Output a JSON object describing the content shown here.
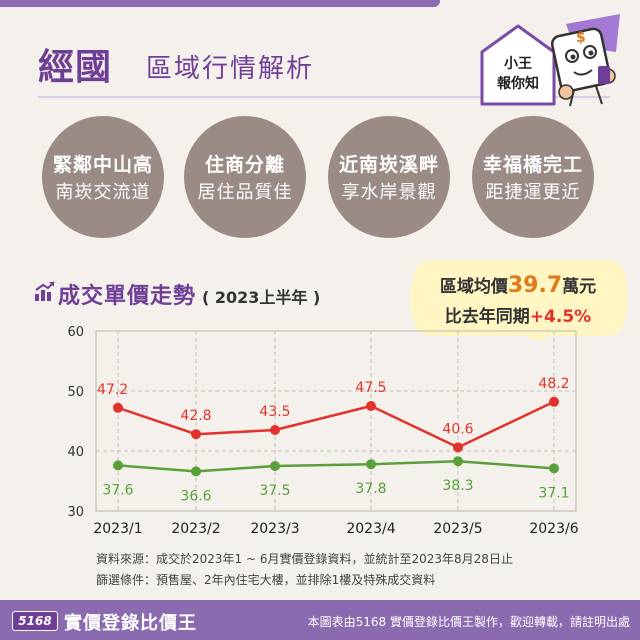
{
  "header": {
    "title": "經國",
    "subtitle": "區域行情解析",
    "mascot_caption_1": "小王",
    "mascot_caption_2": "報你知"
  },
  "highlights": [
    {
      "line1": "緊鄰中山高",
      "line2": "南崁交流道"
    },
    {
      "line1": "住商分離",
      "line2": "居住品質佳"
    },
    {
      "line1": "近南崁溪畔",
      "line2": "享水岸景觀"
    },
    {
      "line1": "幸福橋完工",
      "line2": "距捷運更近"
    }
  ],
  "trend": {
    "title": "成交單價走勢",
    "period": "( 2023上半年 )"
  },
  "callout": {
    "avg_label": "區域均價",
    "avg_value": "39.7",
    "avg_unit": "萬元",
    "yoy_label": "比去年同期",
    "yoy_value": "+4.5%"
  },
  "colors": {
    "brand_purple": "#6f3f97",
    "bar_purple": "#8b6bb0",
    "circle_gray": "#9a8c84",
    "line_red": "#e3322b",
    "line_green": "#5aa03a",
    "accent_orange": "#e07b1a",
    "callout_yellow": "#fff6c4"
  },
  "chart_data": {
    "type": "line",
    "categories": [
      "2023/1",
      "2023/2",
      "2023/3",
      "2023/4",
      "2023/5",
      "2023/6"
    ],
    "series": [
      {
        "values": [
          47.2,
          42.8,
          43.5,
          47.5,
          40.6,
          48.2
        ],
        "labels": [
          "47.2",
          "42.8",
          "43.5",
          "47.5",
          "40.6",
          "48.2"
        ]
      },
      {
        "values": [
          37.6,
          36.6,
          37.5,
          37.8,
          38.3,
          37.1
        ],
        "labels": [
          "37.6",
          "36.6",
          "37.5",
          "37.8",
          "38.3",
          "37.1"
        ]
      }
    ],
    "ylim": [
      30,
      60
    ],
    "yticks": [
      "30",
      "40",
      "50",
      "60"
    ],
    "grid": true
  },
  "footnotes": {
    "source": "資料來源：成交於2023年1 ~ 6月實價登錄資料，並統計至2023年8月28日止",
    "filter": "篩選條件：預售屋、2年內住宅大樓，並排除1樓及特殊成交資料"
  },
  "footer": {
    "logo": "5168",
    "brand": "實價登錄比價王",
    "credit": "本圖表由5168 實價登錄比價王製作，歡迎轉載，請註明出處"
  }
}
